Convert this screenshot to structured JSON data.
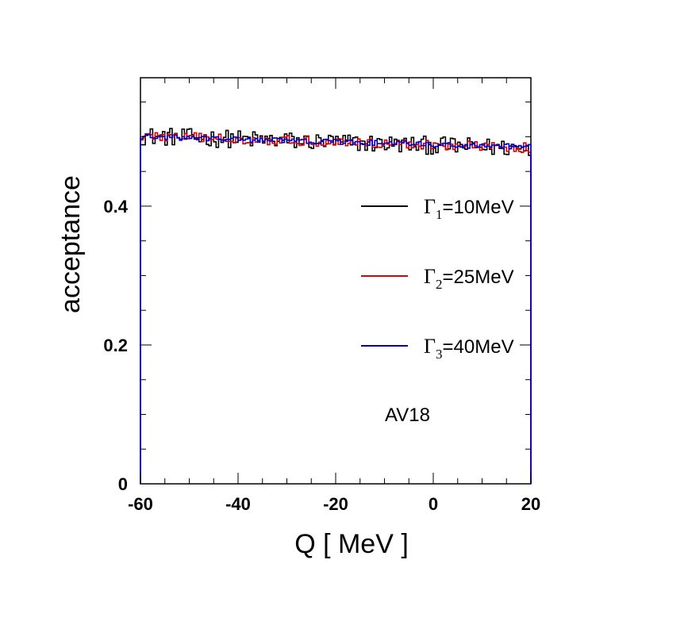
{
  "chart_data": {
    "type": "line",
    "title": "",
    "xlabel": "Q [ MeV ]",
    "ylabel": "acceptance",
    "xlim": [
      -60,
      20
    ],
    "ylim": [
      0,
      0.585
    ],
    "x_ticks": [
      -60,
      -40,
      -20,
      0,
      20
    ],
    "x_tick_labels": [
      "-60",
      "-40",
      "-20",
      "0",
      "20"
    ],
    "y_ticks": [
      0,
      0.2,
      0.4
    ],
    "y_tick_labels": [
      "0",
      "0.2",
      "0.4"
    ],
    "legend_position": "right",
    "annotation": "AV18",
    "bins": 160,
    "series": [
      {
        "name": "Γ1=10MeV",
        "legend_symbol": "Γ",
        "legend_sub": "1",
        "legend_value": "=10MeV",
        "color": "#000000",
        "x_start": -60,
        "x_end": 20,
        "noise": 0.013,
        "mean_start": 0.501,
        "mean_end": 0.483
      },
      {
        "name": "Γ2=25MeV",
        "legend_symbol": "Γ",
        "legend_sub": "2",
        "legend_value": "=25MeV",
        "color": "#dd0000",
        "x_start": -60,
        "x_end": 20,
        "noise": 0.007,
        "mean_start": 0.501,
        "mean_end": 0.484
      },
      {
        "name": "Γ3=40MeV",
        "legend_symbol": "Γ",
        "legend_sub": "3",
        "legend_value": "=40MeV",
        "color": "#0000cc",
        "x_start": -60,
        "x_end": 20,
        "noise": 0.004,
        "mean_start": 0.5,
        "mean_end": 0.485
      }
    ]
  }
}
